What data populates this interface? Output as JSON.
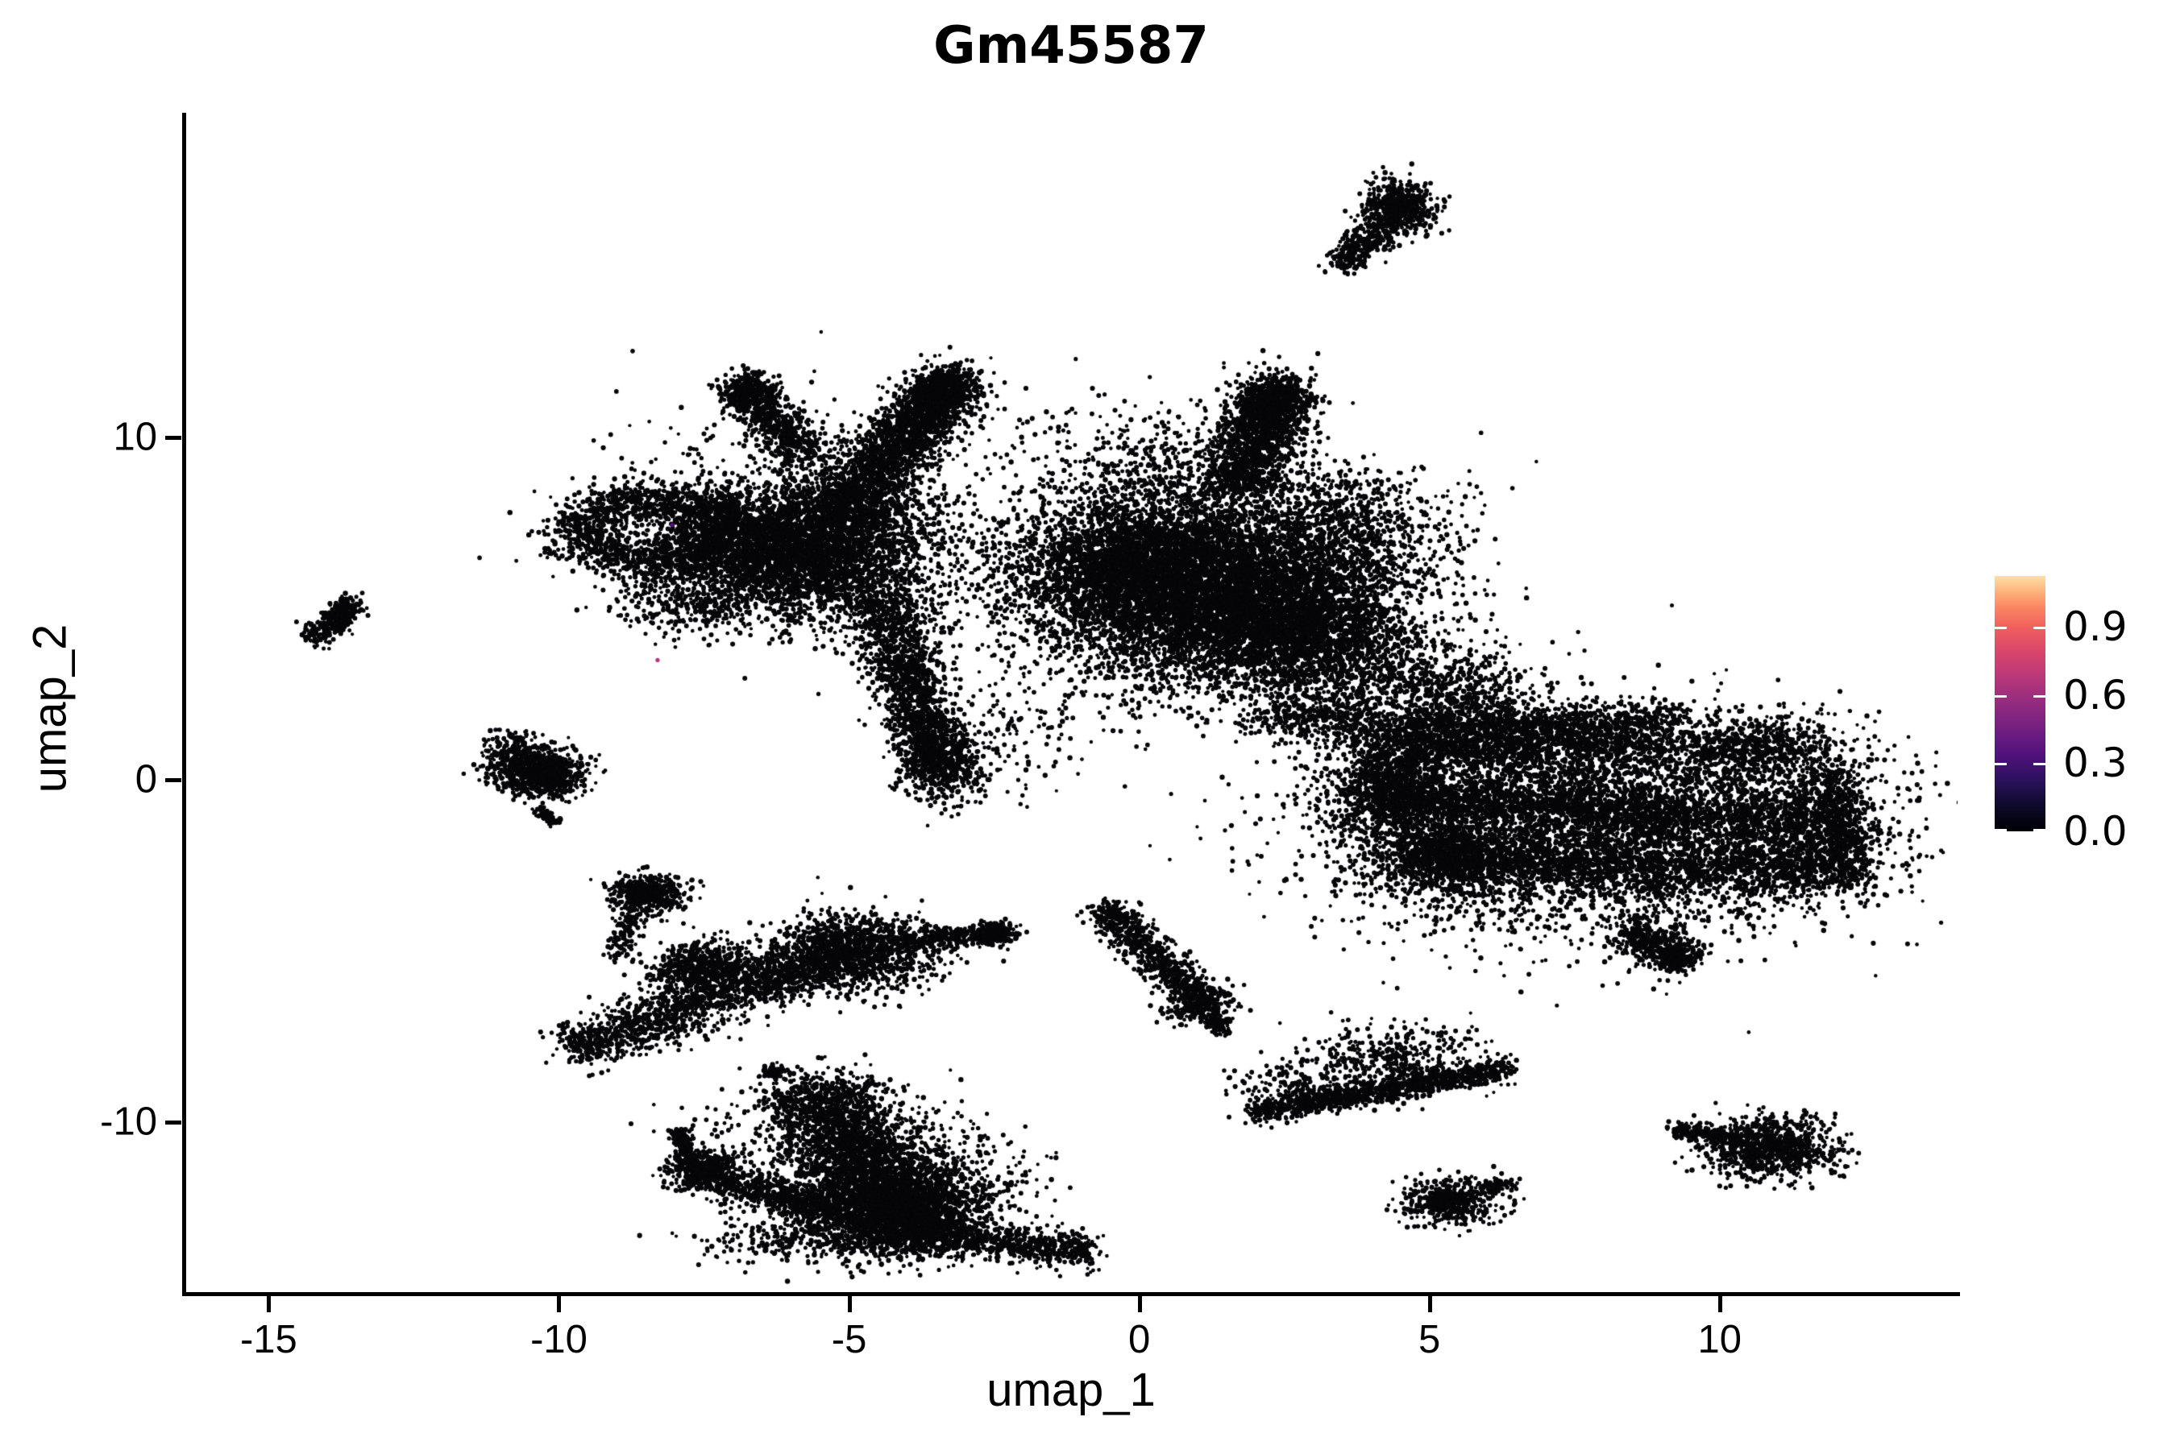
{
  "chart_data": {
    "type": "scatter",
    "title": "Gm45587",
    "xlabel": "umap_1",
    "ylabel": "umap_2",
    "xlim": [
      -16.45,
      14.1
    ],
    "ylim": [
      -15.0,
      19.5
    ],
    "x_ticks": [
      {
        "value": -15,
        "label": "-15"
      },
      {
        "value": -10,
        "label": "-10"
      },
      {
        "value": -5,
        "label": "-5"
      },
      {
        "value": 0,
        "label": "0"
      },
      {
        "value": 5,
        "label": "5"
      },
      {
        "value": 10,
        "label": "10"
      }
    ],
    "y_ticks": [
      {
        "value": 10,
        "label": "10"
      },
      {
        "value": 0,
        "label": "0"
      },
      {
        "value": -10,
        "label": "-10"
      }
    ],
    "grid": false,
    "background": "#ffffff",
    "point_color": "#060609",
    "point_radius_px": 2.6,
    "legend_position": "right",
    "colorbar": {
      "colormap": "magma",
      "max_value": 1.123,
      "ticks": [
        {
          "value": 0.9,
          "label": "0.9"
        },
        {
          "value": 0.6,
          "label": "0.6"
        },
        {
          "value": 0.3,
          "label": "0.3"
        },
        {
          "value": 0.0,
          "label": "0.0"
        }
      ],
      "gradient": [
        {
          "pos": 0.0,
          "color": "#000004"
        },
        {
          "pos": 0.1,
          "color": "#0d0a2a"
        },
        {
          "pos": 0.2,
          "color": "#2b115e"
        },
        {
          "pos": 0.3,
          "color": "#51127c"
        },
        {
          "pos": 0.4,
          "color": "#721f81"
        },
        {
          "pos": 0.5,
          "color": "#932b80"
        },
        {
          "pos": 0.6,
          "color": "#b73779"
        },
        {
          "pos": 0.7,
          "color": "#d8456c"
        },
        {
          "pos": 0.8,
          "color": "#f1605d"
        },
        {
          "pos": 0.88,
          "color": "#fb8861"
        },
        {
          "pos": 0.94,
          "color": "#feb37c"
        },
        {
          "pos": 1.0,
          "color": "#fde0a4"
        }
      ]
    },
    "clusters": [
      {
        "k": "line",
        "x1": -14.25,
        "y1": 4.05,
        "x2": -13.55,
        "y2": 5.2,
        "w": 0.16,
        "n": 260
      },
      {
        "k": "blob",
        "x": -13.8,
        "y": 4.7,
        "sx": 0.12,
        "sy": 0.18,
        "n": 120
      },
      {
        "k": "line",
        "x1": 3.45,
        "y1": 15.0,
        "x2": 4.65,
        "y2": 16.9,
        "w": 0.2,
        "n": 420
      },
      {
        "k": "blob",
        "x": 4.45,
        "y": 16.75,
        "sx": 0.3,
        "sy": 0.4,
        "n": 500
      },
      {
        "k": "ring",
        "x": -8.35,
        "y": 7.3,
        "rx": 1.25,
        "ry": 0.95,
        "w": 0.3,
        "n": 1600
      },
      {
        "k": "blob",
        "x": -5.9,
        "y": 6.7,
        "sx": 1.15,
        "sy": 0.95,
        "n": 4200
      },
      {
        "k": "line",
        "x1": -5.2,
        "y1": 7.6,
        "x2": -3.2,
        "y2": 11.8,
        "w": 0.5,
        "n": 2200,
        "taper": 0.5
      },
      {
        "k": "blob",
        "x": -3.35,
        "y": 11.3,
        "sx": 0.35,
        "sy": 0.5,
        "n": 400
      },
      {
        "k": "line",
        "x1": -5.7,
        "y1": 9.3,
        "x2": -6.85,
        "y2": 11.55,
        "w": 0.26,
        "n": 650
      },
      {
        "k": "blob",
        "x": -6.8,
        "y": 11.4,
        "sx": 0.22,
        "sy": 0.28,
        "n": 220
      },
      {
        "k": "line",
        "x1": -4.5,
        "y1": 5.4,
        "x2": -3.45,
        "y2": 0.45,
        "w": 0.42,
        "n": 1600,
        "taper": 0.4
      },
      {
        "k": "blob",
        "x": -3.4,
        "y": 0.4,
        "sx": 0.38,
        "sy": 0.55,
        "n": 450
      },
      {
        "k": "blob",
        "x": -5.4,
        "y": 7.8,
        "sx": 1.7,
        "sy": 1.7,
        "n": 700
      },
      {
        "k": "line",
        "x1": -8.7,
        "y1": 5.6,
        "x2": -7.2,
        "y2": 4.7,
        "w": 0.5,
        "n": 220
      },
      {
        "k": "blob",
        "x": -1.6,
        "y": 6.2,
        "sx": 0.8,
        "sy": 0.8,
        "n": 200
      },
      {
        "k": "blob",
        "x": -2.2,
        "y": 1.4,
        "sx": 0.7,
        "sy": 0.9,
        "n": 150
      },
      {
        "k": "blob",
        "x": 1.25,
        "y": 5.6,
        "sx": 1.6,
        "sy": 1.4,
        "n": 8000
      },
      {
        "k": "blob",
        "x": -0.1,
        "y": 6.4,
        "sx": 0.8,
        "sy": 0.9,
        "n": 1500
      },
      {
        "k": "blob",
        "x": 2.6,
        "y": 4.3,
        "sx": 0.9,
        "sy": 0.8,
        "n": 1800
      },
      {
        "k": "line",
        "x1": 1.7,
        "y1": 8.5,
        "x2": 2.45,
        "y2": 11.5,
        "w": 0.42,
        "n": 1500,
        "taper": 0.3
      },
      {
        "k": "blob",
        "x": 2.3,
        "y": 11.2,
        "sx": 0.35,
        "sy": 0.42,
        "n": 350
      },
      {
        "k": "blob",
        "x": 0.4,
        "y": 9.2,
        "sx": 1.1,
        "sy": 1.0,
        "n": 500
      },
      {
        "k": "blob",
        "x": 3.7,
        "y": 7.4,
        "sx": 0.9,
        "sy": 0.9,
        "n": 600
      },
      {
        "k": "line",
        "x1": 3.3,
        "y1": 3.6,
        "x2": 6.2,
        "y2": 2.2,
        "w": 0.7,
        "n": 900
      },
      {
        "k": "line",
        "x1": 2.0,
        "y1": 1.9,
        "x2": 6.0,
        "y2": 1.4,
        "w": 0.35,
        "n": 700
      },
      {
        "k": "line",
        "x1": 5.8,
        "y1": 1.5,
        "x2": 9.3,
        "y2": 1.8,
        "w": 0.3,
        "n": 650
      },
      {
        "k": "blob",
        "x": 5.6,
        "y": 0.4,
        "sx": 1.3,
        "sy": 1.0,
        "n": 700
      },
      {
        "k": "blob",
        "x": 7.9,
        "y": -1.4,
        "sx": 2.2,
        "sy": 1.5,
        "n": 5500
      },
      {
        "k": "line",
        "x1": 4.4,
        "y1": 0.9,
        "x2": 9.2,
        "y2": 1.0,
        "w": 0.3,
        "n": 800
      },
      {
        "k": "line",
        "x1": 4.1,
        "y1": -0.6,
        "x2": 11.4,
        "y2": -1.1,
        "w": 0.3,
        "n": 1000
      },
      {
        "k": "line",
        "x1": 4.6,
        "y1": -2.3,
        "x2": 11.7,
        "y2": -2.8,
        "w": 0.3,
        "n": 900
      },
      {
        "k": "line",
        "x1": 11.9,
        "y1": 0.3,
        "x2": 12.2,
        "y2": -3.0,
        "w": 0.3,
        "n": 700
      },
      {
        "k": "blob",
        "x": 4.35,
        "y": -0.3,
        "sx": 0.5,
        "sy": 0.8,
        "n": 1100
      },
      {
        "k": "blob",
        "x": 5.3,
        "y": -2.3,
        "sx": 0.6,
        "sy": 0.5,
        "n": 800
      },
      {
        "k": "blob",
        "x": 10.6,
        "y": 0.9,
        "sx": 0.8,
        "sy": 0.45,
        "n": 700
      },
      {
        "k": "blob",
        "x": 11.3,
        "y": -1.8,
        "sx": 0.7,
        "sy": 0.8,
        "n": 700
      },
      {
        "k": "line",
        "x1": 8.4,
        "y1": -4.4,
        "x2": 9.35,
        "y2": -5.25,
        "w": 0.25,
        "n": 420
      },
      {
        "k": "blob",
        "x": 9.3,
        "y": -5.3,
        "sx": 0.18,
        "sy": 0.18,
        "n": 120
      },
      {
        "k": "line",
        "x1": -11.0,
        "y1": 1.1,
        "x2": -9.85,
        "y2": -0.15,
        "w": 0.3,
        "n": 500
      },
      {
        "k": "blob",
        "x": -10.35,
        "y": 0.15,
        "sx": 0.4,
        "sy": 0.33,
        "n": 550
      },
      {
        "k": "line",
        "x1": -10.35,
        "y1": -0.9,
        "x2": -10.05,
        "y2": -1.25,
        "w": 0.07,
        "n": 70
      },
      {
        "k": "blob",
        "x": -8.45,
        "y": -3.35,
        "sx": 0.33,
        "sy": 0.3,
        "n": 480
      },
      {
        "k": "line",
        "x1": -8.75,
        "y1": -3.9,
        "x2": -9.0,
        "y2": -5.2,
        "w": 0.12,
        "n": 120
      },
      {
        "k": "blob",
        "x": -7.5,
        "y": -5.5,
        "sx": 0.45,
        "sy": 0.4,
        "n": 600
      },
      {
        "k": "blob",
        "x": -4.95,
        "y": -5.05,
        "sx": 0.7,
        "sy": 0.55,
        "n": 1300
      },
      {
        "k": "line",
        "x1": -4.2,
        "y1": -4.7,
        "x2": -2.35,
        "y2": -4.45,
        "w": 0.16,
        "n": 350
      },
      {
        "k": "blob",
        "x": -2.45,
        "y": -4.5,
        "sx": 0.2,
        "sy": 0.2,
        "n": 120
      },
      {
        "k": "line",
        "x1": -9.75,
        "y1": -7.95,
        "x2": -6.95,
        "y2": -6.05,
        "w": 0.3,
        "n": 1000,
        "taper": -0.6
      },
      {
        "k": "line",
        "x1": -6.8,
        "y1": -6.1,
        "x2": -5.5,
        "y2": -5.5,
        "w": 0.35,
        "n": 450
      },
      {
        "k": "blob",
        "x": -6.3,
        "y": -8.55,
        "sx": 0.12,
        "sy": 0.1,
        "n": 60
      },
      {
        "k": "line",
        "x1": -5.7,
        "y1": -9.0,
        "x2": -4.6,
        "y2": -11.4,
        "w": 0.55,
        "n": 1500
      },
      {
        "k": "line",
        "x1": -4.6,
        "y1": -11.4,
        "x2": -3.9,
        "y2": -13.2,
        "w": 0.65,
        "n": 1500
      },
      {
        "k": "blob",
        "x": -4.3,
        "y": -12.7,
        "sx": 0.75,
        "sy": 0.6,
        "n": 1600
      },
      {
        "k": "line",
        "x1": -7.7,
        "y1": -11.45,
        "x2": -5.3,
        "y2": -12.6,
        "w": 0.26,
        "n": 700
      },
      {
        "k": "blob",
        "x": -7.55,
        "y": -11.35,
        "sx": 0.3,
        "sy": 0.26,
        "n": 280
      },
      {
        "k": "line",
        "x1": -7.75,
        "y1": -11.3,
        "x2": -7.95,
        "y2": -10.2,
        "w": 0.1,
        "n": 160
      },
      {
        "k": "line",
        "x1": -3.9,
        "y1": -13.35,
        "x2": -0.85,
        "y2": -13.75,
        "w": 0.26,
        "n": 750
      },
      {
        "k": "blob",
        "x": -5.6,
        "y": -10.6,
        "sx": 1.1,
        "sy": 0.9,
        "n": 350
      },
      {
        "k": "blob",
        "x": -3.2,
        "y": -11.5,
        "sx": 0.8,
        "sy": 0.8,
        "n": 300
      },
      {
        "k": "blob",
        "x": -6.3,
        "y": -13.4,
        "sx": 0.7,
        "sy": 0.4,
        "n": 200
      },
      {
        "k": "line",
        "x1": -0.65,
        "y1": -3.7,
        "x2": 1.15,
        "y2": -6.6,
        "w": 0.22,
        "n": 800
      },
      {
        "k": "blob",
        "x": 1.05,
        "y": -6.6,
        "sx": 0.28,
        "sy": 0.28,
        "n": 250
      },
      {
        "k": "line",
        "x1": 1.2,
        "y1": -6.9,
        "x2": 1.45,
        "y2": -7.4,
        "w": 0.1,
        "n": 80
      },
      {
        "k": "line",
        "x1": 1.95,
        "y1": -9.75,
        "x2": 6.3,
        "y2": -8.45,
        "w": 0.18,
        "n": 1100
      },
      {
        "k": "blob",
        "x": 4.35,
        "y": -8.15,
        "sx": 0.75,
        "sy": 0.45,
        "n": 420
      },
      {
        "k": "blob",
        "x": 2.6,
        "y": -9.0,
        "sx": 0.5,
        "sy": 0.35,
        "n": 150
      },
      {
        "k": "blob",
        "x": 10.9,
        "y": -10.75,
        "sx": 0.55,
        "sy": 0.45,
        "n": 900
      },
      {
        "k": "line",
        "x1": 9.15,
        "y1": -10.2,
        "x2": 10.35,
        "y2": -10.55,
        "w": 0.12,
        "n": 220
      },
      {
        "k": "blob",
        "x": 5.35,
        "y": -12.3,
        "sx": 0.42,
        "sy": 0.32,
        "n": 480
      },
      {
        "k": "line",
        "x1": 5.9,
        "y1": -12.0,
        "x2": 6.45,
        "y2": -11.8,
        "w": 0.1,
        "n": 70
      }
    ],
    "colored_points": [
      {
        "x": -8.3,
        "y": 3.5,
        "color": "#b5367a"
      },
      {
        "x": -8.05,
        "y": 7.45,
        "color": "#51127c"
      }
    ]
  }
}
